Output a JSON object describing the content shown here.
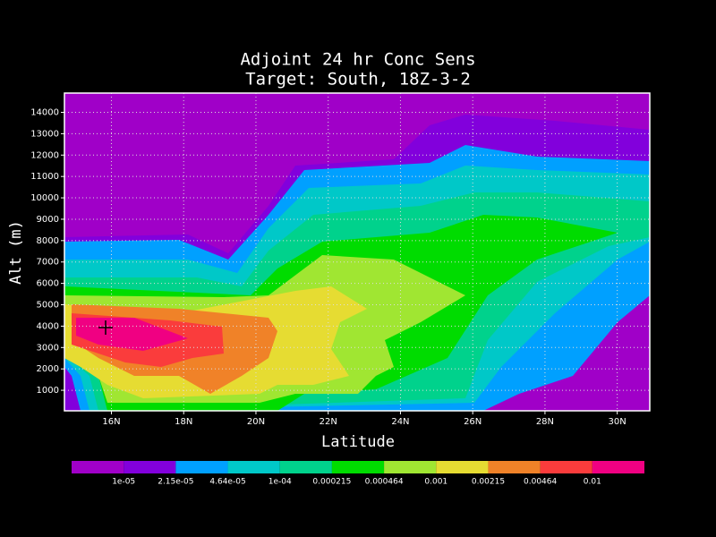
{
  "chart_data": {
    "type": "contour",
    "title": "Adjoint 24 hr Conc Sens",
    "subtitle": "Target: South, 18Z-3-2",
    "x_label": "Latitude",
    "y_label": "Alt (m)",
    "xlim": [
      14.7,
      30.9
    ],
    "ylim": [
      40,
      14900
    ],
    "xticks": [
      {
        "value": 16,
        "label": "16N"
      },
      {
        "value": 18,
        "label": "18N"
      },
      {
        "value": 20,
        "label": "20N"
      },
      {
        "value": 22,
        "label": "22N"
      },
      {
        "value": 24,
        "label": "24N"
      },
      {
        "value": 26,
        "label": "26N"
      },
      {
        "value": 28,
        "label": "28N"
      },
      {
        "value": 30,
        "label": "30N"
      }
    ],
    "yticks": [
      1000,
      2000,
      3000,
      4000,
      5000,
      6000,
      7000,
      8000,
      9000,
      10000,
      11000,
      12000,
      13000,
      14000
    ],
    "grid": true,
    "levels": [
      {
        "value": 1e-05,
        "label": "1e-05"
      },
      {
        "value": 2.15e-05,
        "label": "2.15e-05"
      },
      {
        "value": 4.64e-05,
        "label": "4.64e-05"
      },
      {
        "value": 0.0001,
        "label": "1e-04"
      },
      0.000215,
      0.000464,
      0.001,
      0.00215,
      0.00464,
      0.01
    ],
    "colors": [
      "#a000c8",
      "#8200dc",
      "#00a0ff",
      "#00c8c8",
      "#00d28c",
      "#00dc00",
      "#a0e632",
      "#e6dc32",
      "#f08228",
      "#fa3c3c",
      "#f00082"
    ]
  }
}
